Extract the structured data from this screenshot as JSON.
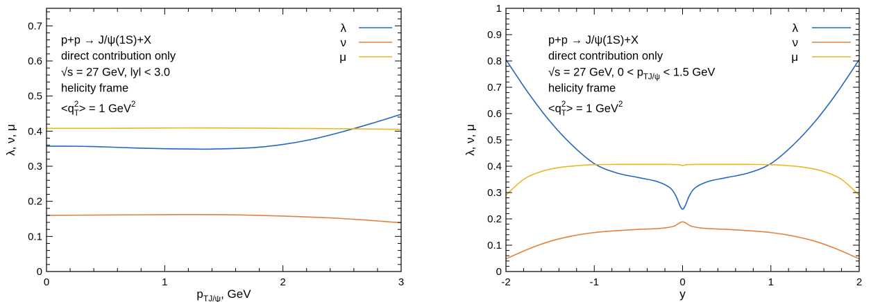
{
  "chart_data": [
    {
      "type": "line",
      "xlabel": "p",
      "xlabel_sub": "TJ/ψ",
      "xlabel_suffix": ", GeV",
      "ylabel": "λ, ν, μ",
      "xlim": [
        0,
        3
      ],
      "ylim": [
        0,
        0.75
      ],
      "xticks": [
        0,
        1,
        2,
        3
      ],
      "yticks": [
        0,
        0.1,
        0.2,
        0.3,
        0.4,
        0.5,
        0.6,
        0.7
      ],
      "annotations": [
        "p+p → J/ψ(1S)+X",
        "direct contribution only",
        "√s = 27 GeV, lyl < 3.0",
        "helicity frame",
        "<q²T> = 1 GeV²"
      ],
      "legend_placement": "top-right",
      "series": [
        {
          "name": "λ",
          "color": "#2166c0",
          "x": [
            0,
            0.25,
            0.5,
            0.75,
            1.0,
            1.25,
            1.4,
            1.75,
            2.0,
            2.25,
            2.5,
            2.75,
            3.0
          ],
          "values": [
            0.357,
            0.357,
            0.355,
            0.352,
            0.35,
            0.349,
            0.349,
            0.353,
            0.362,
            0.377,
            0.398,
            0.422,
            0.448
          ]
        },
        {
          "name": "ν",
          "color": "#e0823d",
          "x": [
            0,
            0.5,
            1.0,
            1.5,
            2.0,
            2.5,
            3.0
          ],
          "values": [
            0.16,
            0.161,
            0.162,
            0.162,
            0.158,
            0.151,
            0.139
          ]
        },
        {
          "name": "μ",
          "color": "#e6b822",
          "x": [
            0,
            0.5,
            1.0,
            1.5,
            2.0,
            2.5,
            3.0
          ],
          "values": [
            0.408,
            0.408,
            0.409,
            0.409,
            0.408,
            0.407,
            0.405
          ]
        }
      ]
    },
    {
      "type": "line",
      "xlabel": "y",
      "ylabel": "λ, ν, μ",
      "xlim": [
        -2,
        2
      ],
      "ylim": [
        0,
        1
      ],
      "xticks": [
        -2,
        -1,
        0,
        1,
        2
      ],
      "yticks": [
        0,
        0.1,
        0.2,
        0.3,
        0.4,
        0.5,
        0.6,
        0.7,
        0.8,
        0.9,
        1
      ],
      "annotations": [
        "p+p → J/ψ(1S)+X",
        "direct contribution only",
        "√s = 27 GeV, 0 < pTJ/ψ < 1.5 GeV",
        "helicity frame",
        "<q²T> = 1 GeV²"
      ],
      "legend_placement": "top-right",
      "series": [
        {
          "name": "λ",
          "color": "#2166c0",
          "x": [
            -2,
            -1.75,
            -1.5,
            -1.25,
            -1.0,
            -0.75,
            -0.5,
            -0.3,
            -0.15,
            -0.08,
            -0.03,
            0,
            0.03,
            0.08,
            0.15,
            0.3,
            0.5,
            0.75,
            1.0,
            1.25,
            1.5,
            1.75,
            2.0
          ],
          "values": [
            0.805,
            0.68,
            0.57,
            0.48,
            0.41,
            0.375,
            0.357,
            0.343,
            0.32,
            0.29,
            0.25,
            0.237,
            0.25,
            0.29,
            0.32,
            0.343,
            0.357,
            0.375,
            0.41,
            0.48,
            0.57,
            0.68,
            0.805
          ]
        },
        {
          "name": "ν",
          "color": "#e0823d",
          "x": [
            -2,
            -1.75,
            -1.5,
            -1.25,
            -1.0,
            -0.75,
            -0.5,
            -0.25,
            -0.1,
            0,
            0.1,
            0.25,
            0.5,
            0.75,
            1.0,
            1.25,
            1.5,
            1.75,
            2.0
          ],
          "values": [
            0.048,
            0.085,
            0.115,
            0.135,
            0.148,
            0.155,
            0.16,
            0.164,
            0.172,
            0.189,
            0.172,
            0.164,
            0.16,
            0.155,
            0.148,
            0.135,
            0.115,
            0.085,
            0.048
          ]
        },
        {
          "name": "μ",
          "color": "#e6b822",
          "x": [
            -2,
            -1.8,
            -1.6,
            -1.4,
            -1.2,
            -1.0,
            -0.75,
            -0.5,
            -0.2,
            -0.05,
            0,
            0.05,
            0.2,
            0.5,
            0.75,
            1.0,
            1.2,
            1.4,
            1.6,
            1.8,
            2.0
          ],
          "values": [
            0.29,
            0.35,
            0.38,
            0.395,
            0.402,
            0.406,
            0.407,
            0.407,
            0.407,
            0.406,
            0.403,
            0.406,
            0.407,
            0.407,
            0.407,
            0.406,
            0.402,
            0.395,
            0.38,
            0.35,
            0.29
          ]
        }
      ]
    }
  ]
}
